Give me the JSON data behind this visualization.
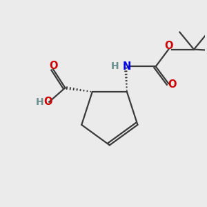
{
  "bg_color": "#ebebeb",
  "bond_color": "#3a3a3a",
  "nitrogen_color": "#0000ee",
  "oxygen_color": "#cc0000",
  "hydrogen_color": "#6a8f8f",
  "figsize": [
    3.0,
    3.0
  ],
  "dpi": 100,
  "xlim": [
    0,
    10
  ],
  "ylim": [
    0,
    10
  ]
}
